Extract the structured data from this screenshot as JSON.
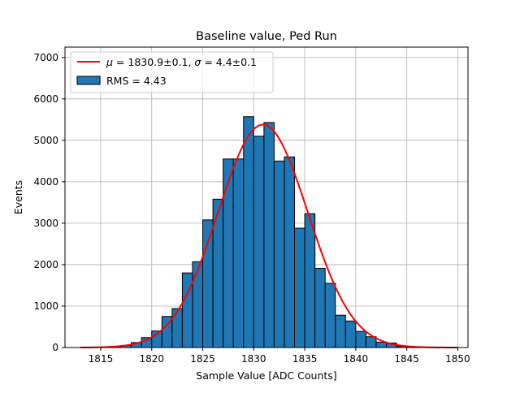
{
  "chart_data": {
    "type": "bar",
    "title": "Baseline value, Ped Run",
    "xlabel": "Sample Value [ADC Counts]",
    "ylabel": "Events",
    "xlim": [
      1811.5,
      1851.0
    ],
    "ylim": [
      0,
      7250
    ],
    "grid": true,
    "legend_position": "top-left",
    "xticks": [
      1815,
      1820,
      1825,
      1830,
      1835,
      1840,
      1845,
      1850
    ],
    "yticks": [
      0,
      1000,
      2000,
      3000,
      4000,
      5000,
      6000,
      7000
    ],
    "bin_width": 1,
    "bin_left_edges": [
      1814,
      1815,
      1816,
      1817,
      1818,
      1819,
      1820,
      1821,
      1822,
      1823,
      1824,
      1825,
      1826,
      1827,
      1828,
      1829,
      1830,
      1831,
      1832,
      1833,
      1834,
      1835,
      1836,
      1837,
      1838,
      1839,
      1840,
      1841,
      1842,
      1843,
      1844,
      1845,
      1846,
      1847
    ],
    "series": [
      {
        "name": "RMS = 4.43",
        "type": "histogram",
        "color": "#1f77b4",
        "edgecolor": "#000000",
        "values": [
          5,
          10,
          20,
          50,
          120,
          240,
          400,
          750,
          940,
          1800,
          2070,
          3080,
          3580,
          4550,
          4550,
          5570,
          5100,
          5430,
          4500,
          4600,
          2880,
          3230,
          1910,
          1550,
          780,
          640,
          390,
          260,
          130,
          110,
          30,
          10,
          5,
          2
        ]
      },
      {
        "name": "μ = 1830.9±0.1, σ = 4.4±0.1",
        "type": "gaussian_fit",
        "color": "#ff0000",
        "mu": 1830.9,
        "sigma": 4.4,
        "amplitude": 5380,
        "x_range": [
          1813,
          1850
        ]
      }
    ],
    "legend": {
      "fit_label_prefix": "μ",
      "fit_label_mid": " = 1830.9±0.1, ",
      "fit_label_sigma": "σ",
      "fit_label_suffix": " = 4.4±0.1",
      "hist_label": "RMS = 4.43"
    }
  }
}
